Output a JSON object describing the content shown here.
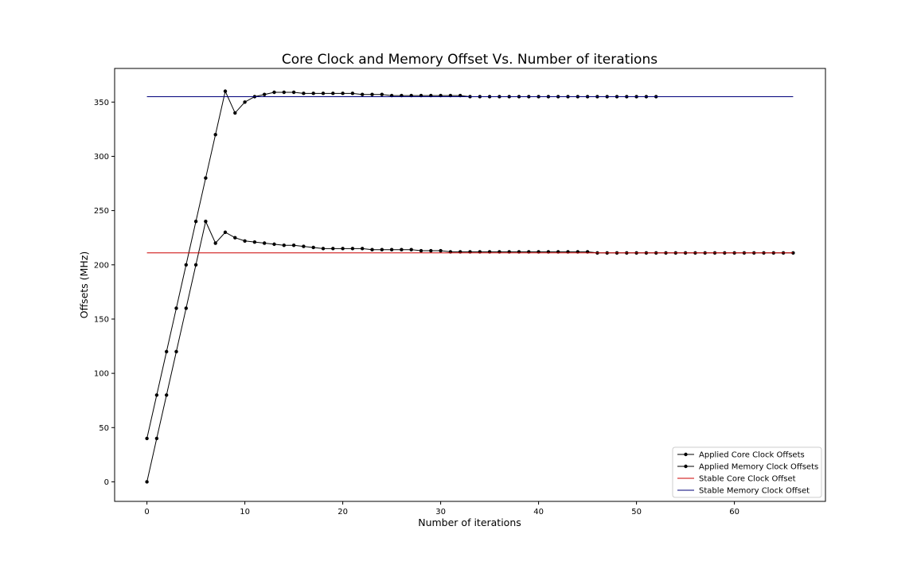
{
  "chart_data": {
    "type": "line",
    "title": "Core Clock and Memory Offset Vs. Number of iterations",
    "xlabel": "Number of iterations",
    "ylabel": "Offsets (MHz)",
    "xlim": [
      -3.3,
      69.3
    ],
    "ylim": [
      -18,
      381
    ],
    "xticks": [
      0,
      10,
      20,
      30,
      40,
      50,
      60
    ],
    "yticks": [
      0,
      50,
      100,
      150,
      200,
      250,
      300,
      350
    ],
    "grid": false,
    "legend_position": "lower-right",
    "series": [
      {
        "name": "Applied Core Clock Offsets",
        "kind": "line-marker",
        "color": "#000000",
        "x": [
          0,
          1,
          2,
          3,
          4,
          5,
          6,
          7,
          8,
          9,
          10,
          11,
          12,
          13,
          14,
          15,
          16,
          17,
          18,
          19,
          20,
          21,
          22,
          23,
          24,
          25,
          26,
          27,
          28,
          29,
          30,
          31,
          32,
          33,
          34,
          35,
          36,
          37,
          38,
          39,
          40,
          41,
          42,
          43,
          44,
          45,
          46,
          47,
          48,
          49,
          50,
          51,
          52,
          53,
          54,
          55,
          56,
          57,
          58,
          59,
          60,
          61,
          62,
          63,
          64,
          65,
          66
        ],
        "y": [
          0,
          40,
          80,
          120,
          160,
          200,
          240,
          220,
          230,
          225,
          222,
          221,
          220,
          219,
          218,
          218,
          217,
          216,
          215,
          215,
          215,
          215,
          215,
          214,
          214,
          214,
          214,
          214,
          213,
          213,
          213,
          212,
          212,
          212,
          212,
          212,
          212,
          212,
          212,
          212,
          212,
          212,
          212,
          212,
          212,
          212,
          211,
          211,
          211,
          211,
          211,
          211,
          211,
          211,
          211,
          211,
          211,
          211,
          211,
          211,
          211,
          211,
          211,
          211,
          211,
          211,
          211
        ]
      },
      {
        "name": "Applied Memory Clock Offsets",
        "kind": "line-marker",
        "color": "#000000",
        "x": [
          0,
          1,
          2,
          3,
          4,
          5,
          6,
          7,
          8,
          9,
          10,
          11,
          12,
          13,
          14,
          15,
          16,
          17,
          18,
          19,
          20,
          21,
          22,
          23,
          24,
          25,
          26,
          27,
          28,
          29,
          30,
          31,
          32,
          33,
          34,
          35,
          36,
          37,
          38,
          39,
          40,
          41,
          42,
          43,
          44,
          45,
          46,
          47,
          48,
          49,
          50,
          51,
          52
        ],
        "y": [
          40,
          80,
          120,
          160,
          200,
          240,
          280,
          320,
          360,
          340,
          350,
          355,
          357,
          359,
          359,
          359,
          358,
          358,
          358,
          358,
          358,
          358,
          357,
          357,
          357,
          356,
          356,
          356,
          356,
          356,
          356,
          356,
          356,
          355,
          355,
          355,
          355,
          355,
          355,
          355,
          355,
          355,
          355,
          355,
          355,
          355,
          355,
          355,
          355,
          355,
          355,
          355,
          355
        ]
      },
      {
        "name": "Stable Core Clock Offset",
        "kind": "line",
        "color": "#cc0000",
        "x": [
          0,
          66
        ],
        "y": [
          211,
          211
        ]
      },
      {
        "name": "Stable Memory Clock Offset",
        "kind": "line",
        "color": "#00007a",
        "x": [
          0,
          66
        ],
        "y": [
          355,
          355
        ]
      }
    ]
  }
}
